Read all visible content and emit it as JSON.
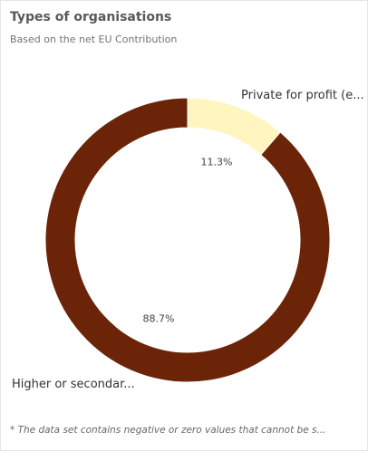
{
  "header": {
    "title": "Types of organisations",
    "subtitle": "Based on the net EU Contribution"
  },
  "footnote": "* The data set contains negative or zero values that cannot be s...",
  "chart_data": {
    "type": "pie",
    "variant": "donut",
    "title": "Types of organisations",
    "subtitle": "Based on the net EU Contribution",
    "categories": [
      "Private for profit (e...",
      "Higher or secondar..."
    ],
    "values": [
      11.3,
      88.7
    ],
    "value_labels": [
      "11.3%",
      "88.7%"
    ],
    "colors": [
      "#fff5bf",
      "#6b2408"
    ],
    "start_angle_deg": 0,
    "direction": "clockwise",
    "legend": "none"
  }
}
